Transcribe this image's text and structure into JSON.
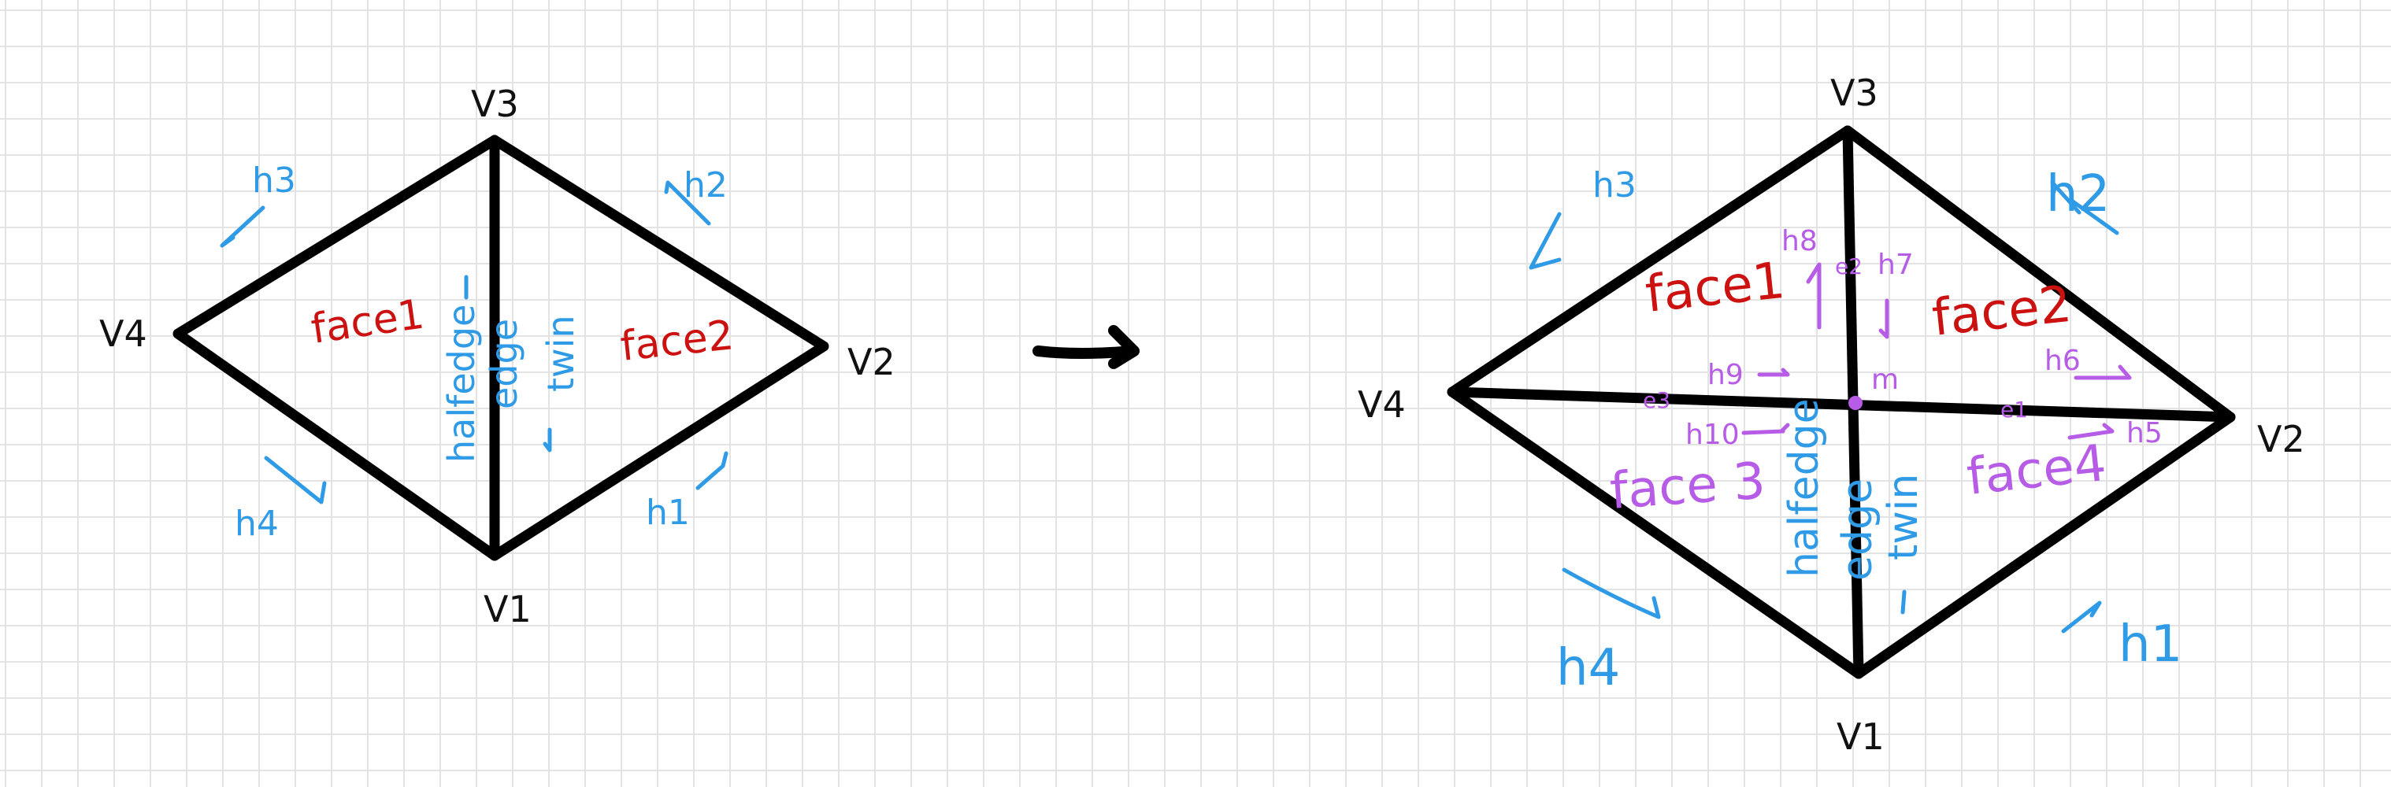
{
  "before": {
    "vertices": {
      "v1": "V1",
      "v2": "V2",
      "v3": "V3",
      "v4": "V4"
    },
    "faces": {
      "face1": "face1",
      "face2": "face2"
    },
    "halfedges": {
      "h1": "h1",
      "h2": "h2",
      "h3": "h3",
      "h4": "h4"
    },
    "center": {
      "halfedge": "halfedge",
      "edge": "edge",
      "twin": "twin"
    }
  },
  "transition": {
    "arrow": "arrow-right-icon"
  },
  "after": {
    "vertices": {
      "v1": "V1",
      "v2": "V2",
      "v3": "V3",
      "v4": "V4",
      "m": "m"
    },
    "faces": {
      "face1": "face1",
      "face2": "face2",
      "face3": "face 3",
      "face4": "face4"
    },
    "halfedges_outer": {
      "h1": "h1",
      "h2": "h2",
      "h3": "h3",
      "h4": "h4"
    },
    "halfedges_new": {
      "h5": "h5",
      "h6": "h6",
      "h7": "h7",
      "h8": "h8",
      "h9": "h9",
      "h10": "h10"
    },
    "new_edges": {
      "e1": "e1",
      "e2": "e2",
      "e3": "e3"
    },
    "center": {
      "halfedge": "halfedge",
      "edge": "edge",
      "twin": "twin"
    }
  }
}
